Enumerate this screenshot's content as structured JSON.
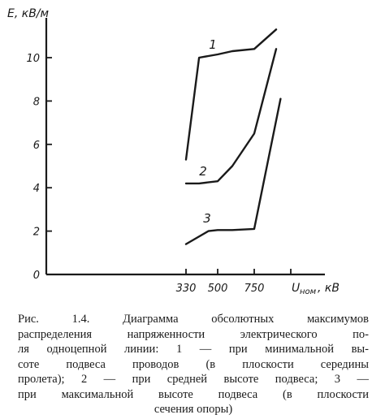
{
  "chart_data": {
    "type": "line",
    "title": "",
    "ylabel": "E, кВ/м",
    "xlabel_main": "U",
    "xlabel_sub": "ном",
    "xlabel_unit": ", кВ",
    "ylim": [
      0,
      11.5
    ],
    "xlim": [
      0,
      1000
    ],
    "y_ticks": [
      0,
      2,
      4,
      6,
      8,
      10
    ],
    "x_ticks": [
      330,
      500,
      750
    ],
    "grid": false,
    "series": [
      {
        "name": "1",
        "x": [
          330,
          400,
          500,
          600,
          750,
          900
        ],
        "y": [
          5.3,
          10.0,
          10.15,
          10.3,
          10.4,
          11.3
        ]
      },
      {
        "name": "2",
        "x": [
          330,
          400,
          500,
          600,
          750,
          900
        ],
        "y": [
          4.2,
          4.2,
          4.3,
          5.0,
          6.5,
          10.4
        ]
      },
      {
        "name": "3",
        "x": [
          330,
          450,
          500,
          600,
          750,
          930
        ],
        "y": [
          1.4,
          2.0,
          2.05,
          2.05,
          2.1,
          8.1
        ]
      }
    ]
  },
  "caption": {
    "lines": [
      "Рис. 1.4. Диаграмма обсолютных максимумов",
      "распределения напряженности электрического по-",
      "ля одноцепной линии: 1 — при минимальной вы-",
      "соте подвеса проводов (в плоскости середины",
      "пролета); 2 — при средней высоте подвеса; 3 —",
      "при максимальной высоте подвеса (в плоскости",
      "сечения опоры)"
    ]
  }
}
